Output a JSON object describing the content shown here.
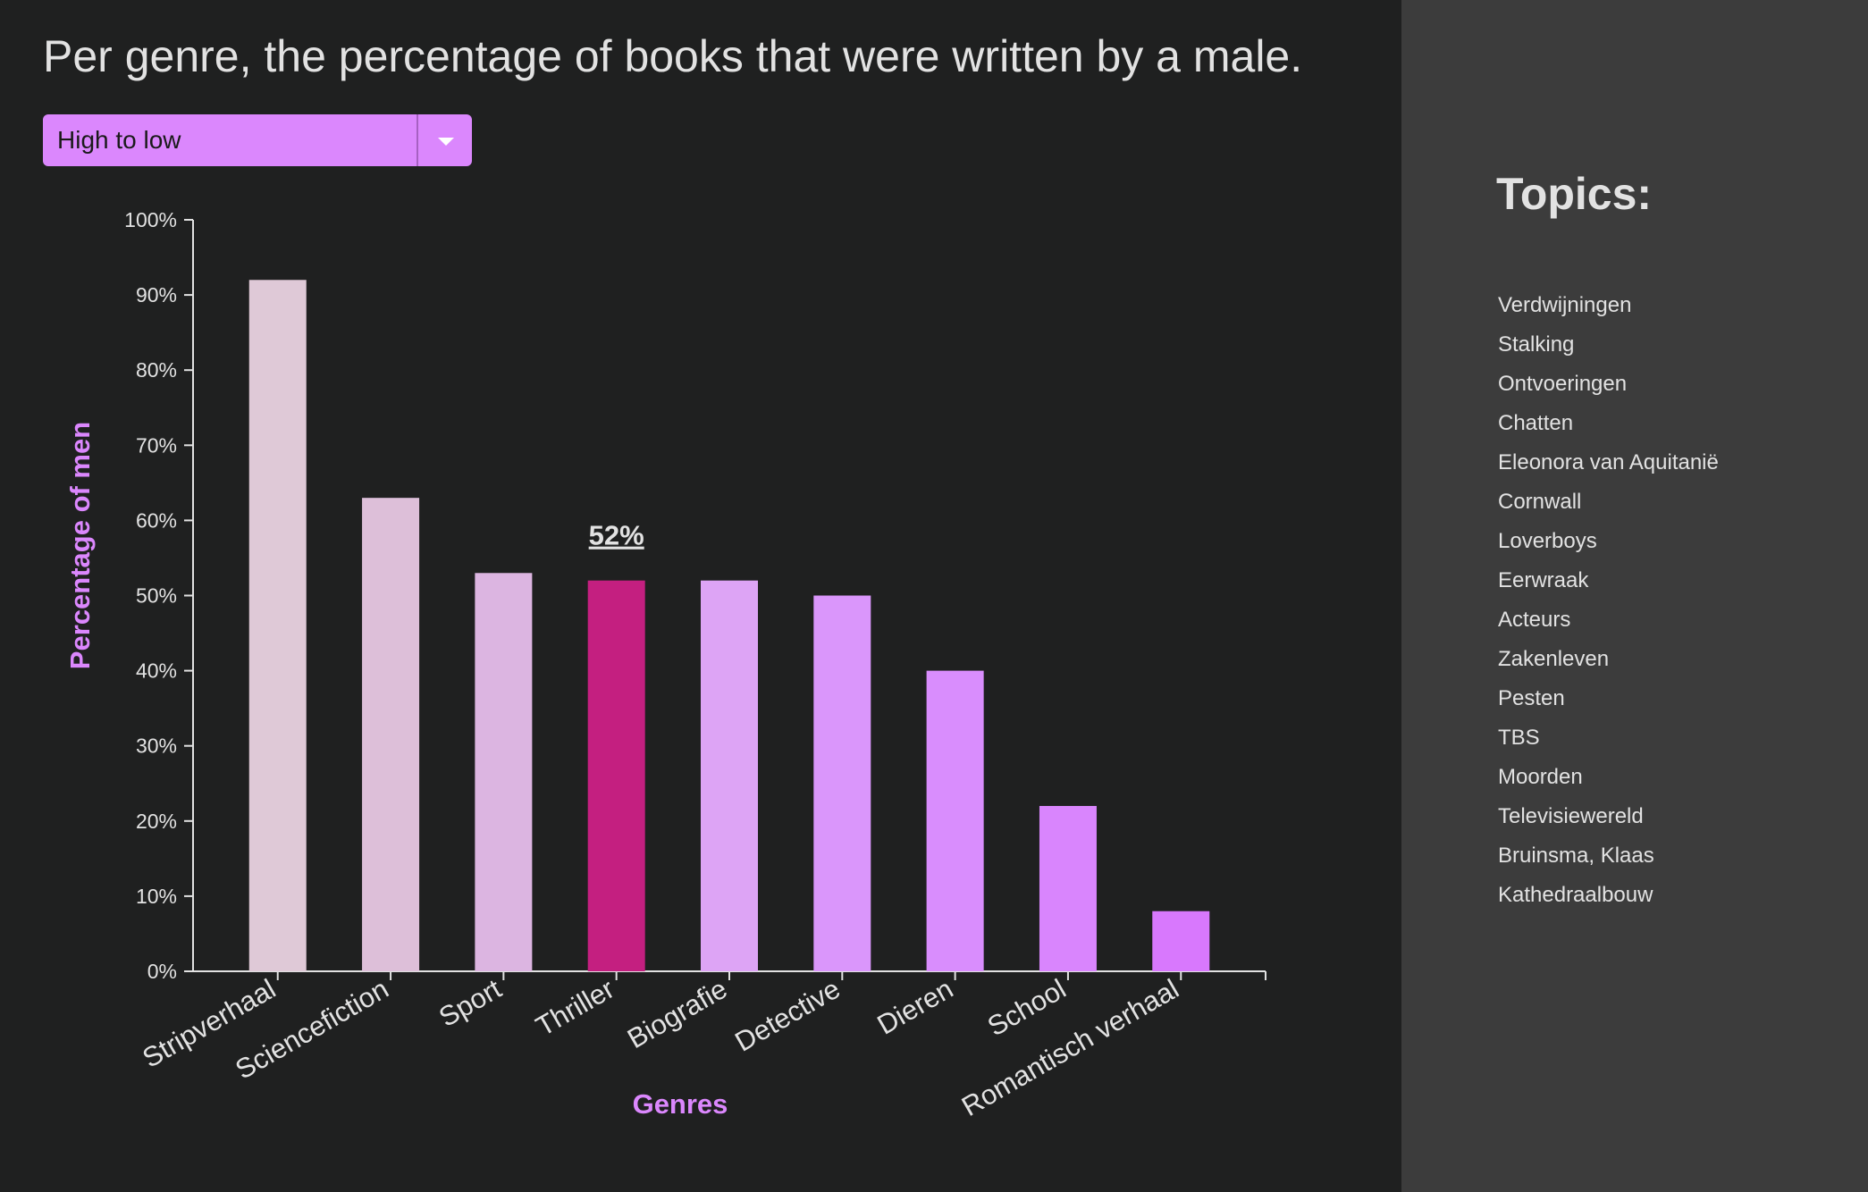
{
  "page": {
    "title": "Per genre, the percentage of books that were written by a male."
  },
  "sort_select": {
    "value": "High to low"
  },
  "sidebar": {
    "title": "Topics:",
    "topics": [
      "Verdwijningen",
      "Stalking",
      "Ontvoeringen",
      "Chatten",
      "Eleonora van Aquitanië",
      "Cornwall",
      "Loverboys",
      "Eerwraak",
      "Acteurs",
      "Zakenleven",
      "Pesten",
      "TBS",
      "Moorden",
      "Televisiewereld",
      "Bruinsma, Klaas",
      "Kathedraalbouw"
    ]
  },
  "chart_data": {
    "type": "bar",
    "xlabel": "Genres",
    "ylabel": "Percentage of men",
    "ylim": [
      0,
      100
    ],
    "yticks": [
      "0%",
      "10%",
      "20%",
      "30%",
      "40%",
      "50%",
      "60%",
      "70%",
      "80%",
      "90%",
      "100%"
    ],
    "categories": [
      "Stripverhaal",
      "Sciencefiction",
      "Sport",
      "Thriller",
      "Biografie",
      "Detective",
      "Dieren",
      "School",
      "Romantisch verhaal"
    ],
    "values": [
      92,
      63,
      53,
      52,
      52,
      50,
      40,
      22,
      8
    ],
    "colors": [
      "#dfc9d7",
      "#ddbfd9",
      "#dcb5e1",
      "#c41f80",
      "#dda4f5",
      "#da96fb",
      "#d98dfd",
      "#d985fd",
      "#d878fd"
    ],
    "highlighted": {
      "category": "Thriller",
      "label": "52%",
      "color": "#c41f80"
    },
    "axis_label_color": "#db87fd",
    "grid": false
  }
}
